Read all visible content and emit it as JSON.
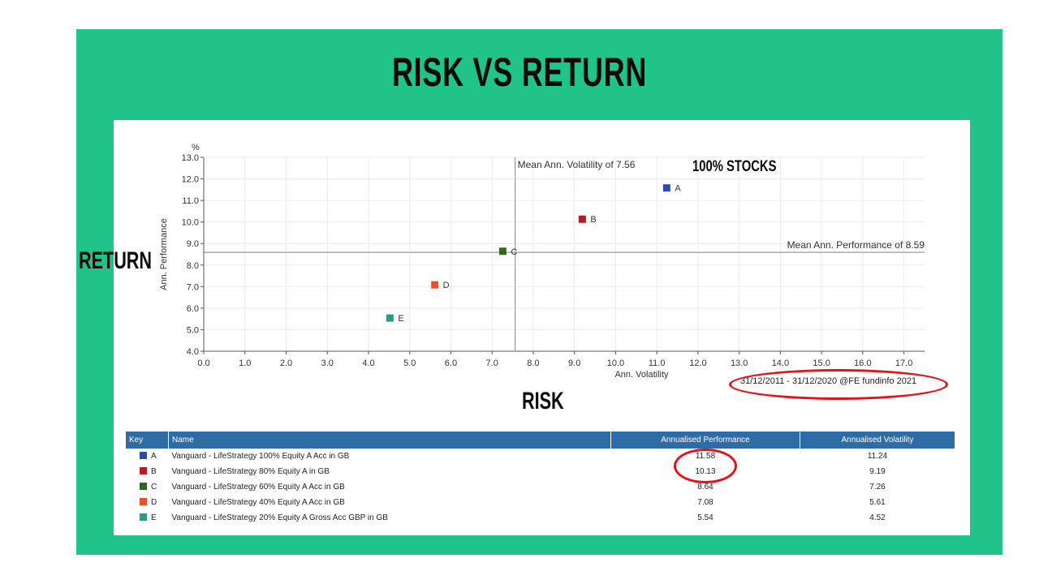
{
  "slide": {
    "title": "RISK VS RETURN",
    "y_overlay_label": "RETURN",
    "x_overlay_label": "RISK",
    "annotation_label": "100% STOCKS",
    "date_range": "31/12/2011 - 31/12/2020 @FE fundinfo 2021",
    "bg_color": "#20c48a",
    "highlight_color": "#e0151b"
  },
  "chart_data": {
    "type": "scatter",
    "title": "",
    "xlabel": "Ann. Volatility",
    "ylabel": "Ann. Performance",
    "y_unit": "%",
    "xlim": [
      0,
      17.5
    ],
    "ylim": [
      4,
      13
    ],
    "x_ticks": [
      "0.0",
      "1.0",
      "2.0",
      "3.0",
      "4.0",
      "5.0",
      "6.0",
      "7.0",
      "8.0",
      "9.0",
      "10.0",
      "11.0",
      "12.0",
      "13.0",
      "14.0",
      "15.0",
      "16.0",
      "17.0"
    ],
    "y_ticks": [
      "4.0",
      "5.0",
      "6.0",
      "7.0",
      "8.0",
      "9.0",
      "10.0",
      "11.0",
      "12.0",
      "13.0"
    ],
    "grid": true,
    "mean_volatility": 7.56,
    "mean_volatility_label": "Mean Ann. Volatility of 7.56",
    "mean_performance": 8.59,
    "mean_performance_label": "Mean Ann. Performance of 8.59",
    "points": [
      {
        "key": "A",
        "x": 11.24,
        "y": 11.58,
        "color": "#2a4ea8"
      },
      {
        "key": "B",
        "x": 9.19,
        "y": 10.13,
        "color": "#b31c22"
      },
      {
        "key": "C",
        "x": 7.26,
        "y": 8.64,
        "color": "#2f6a1c"
      },
      {
        "key": "D",
        "x": 5.61,
        "y": 7.08,
        "color": "#e2542d"
      },
      {
        "key": "E",
        "x": 4.52,
        "y": 5.54,
        "color": "#2a9a8a"
      }
    ]
  },
  "table": {
    "headers": {
      "key": "Key",
      "name": "Name",
      "perf": "Annualised Performance",
      "vol": "Annualised Volatility"
    },
    "rows": [
      {
        "key": "A",
        "name": "Vanguard - LifeStrategy 100% Equity A Acc in GB",
        "perf": "11.58",
        "vol": "11.24",
        "color": "#2a4ea8"
      },
      {
        "key": "B",
        "name": "Vanguard - LifeStrategy 80% Equity A in GB",
        "perf": "10.13",
        "vol": "9.19",
        "color": "#b31c22"
      },
      {
        "key": "C",
        "name": "Vanguard - LifeStrategy 60% Equity A Acc in GB",
        "perf": "8.64",
        "vol": "7.26",
        "color": "#2f6a1c"
      },
      {
        "key": "D",
        "name": "Vanguard - LifeStrategy 40% Equity A Acc in GB",
        "perf": "7.08",
        "vol": "5.61",
        "color": "#e2542d"
      },
      {
        "key": "E",
        "name": "Vanguard - LifeStrategy 20% Equity A Gross Acc GBP in GB",
        "perf": "5.54",
        "vol": "4.52",
        "color": "#2a9a8a"
      }
    ]
  }
}
